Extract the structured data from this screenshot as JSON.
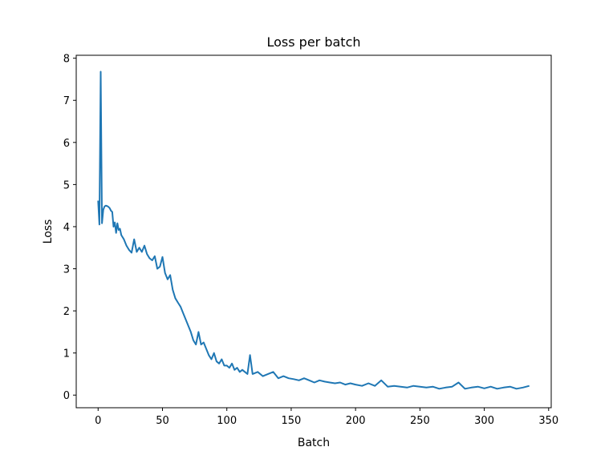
{
  "chart_data": {
    "type": "line",
    "title": "Loss per batch",
    "xlabel": "Batch",
    "ylabel": "Loss",
    "xlim": [
      -17,
      352
    ],
    "ylim": [
      -0.3,
      8.07
    ],
    "xticks": [
      0,
      50,
      100,
      150,
      200,
      250,
      300,
      350
    ],
    "yticks": [
      0,
      1,
      2,
      3,
      4,
      5,
      6,
      7,
      8
    ],
    "grid": false,
    "legend": null,
    "line_color": "#1f77b4",
    "series": [
      {
        "name": "loss",
        "x": [
          0,
          1,
          2,
          3,
          4,
          5,
          6,
          7,
          8,
          9,
          10,
          11,
          12,
          13,
          14,
          15,
          16,
          17,
          18,
          19,
          20,
          22,
          24,
          26,
          28,
          30,
          32,
          34,
          36,
          38,
          40,
          42,
          44,
          46,
          48,
          50,
          52,
          54,
          56,
          58,
          60,
          62,
          64,
          66,
          68,
          70,
          72,
          74,
          76,
          78,
          80,
          82,
          84,
          86,
          88,
          90,
          92,
          94,
          96,
          98,
          100,
          102,
          104,
          106,
          108,
          110,
          112,
          114,
          116,
          118,
          120,
          124,
          128,
          132,
          136,
          140,
          144,
          148,
          152,
          156,
          160,
          164,
          168,
          172,
          176,
          180,
          184,
          188,
          192,
          196,
          200,
          205,
          210,
          215,
          220,
          225,
          230,
          235,
          240,
          245,
          250,
          255,
          260,
          265,
          270,
          275,
          280,
          285,
          290,
          295,
          300,
          305,
          310,
          315,
          320,
          325,
          330,
          335
        ],
        "values": [
          4.62,
          4.05,
          7.68,
          4.08,
          4.4,
          4.48,
          4.5,
          4.49,
          4.47,
          4.44,
          4.38,
          4.35,
          4.0,
          4.1,
          3.85,
          4.08,
          3.92,
          3.95,
          3.8,
          3.75,
          3.7,
          3.55,
          3.45,
          3.38,
          3.7,
          3.4,
          3.5,
          3.4,
          3.55,
          3.35,
          3.25,
          3.2,
          3.3,
          3.0,
          3.05,
          3.28,
          2.9,
          2.75,
          2.85,
          2.5,
          2.3,
          2.2,
          2.1,
          1.95,
          1.8,
          1.65,
          1.5,
          1.3,
          1.2,
          1.5,
          1.2,
          1.25,
          1.1,
          0.95,
          0.85,
          1.0,
          0.8,
          0.75,
          0.85,
          0.7,
          0.7,
          0.65,
          0.75,
          0.6,
          0.65,
          0.55,
          0.6,
          0.55,
          0.5,
          0.95,
          0.5,
          0.55,
          0.45,
          0.5,
          0.55,
          0.4,
          0.45,
          0.4,
          0.38,
          0.35,
          0.4,
          0.35,
          0.3,
          0.35,
          0.32,
          0.3,
          0.28,
          0.3,
          0.25,
          0.28,
          0.25,
          0.22,
          0.28,
          0.22,
          0.35,
          0.2,
          0.22,
          0.2,
          0.18,
          0.22,
          0.2,
          0.18,
          0.2,
          0.15,
          0.18,
          0.2,
          0.3,
          0.15,
          0.18,
          0.2,
          0.16,
          0.2,
          0.15,
          0.18,
          0.2,
          0.15,
          0.18,
          0.22
        ]
      }
    ]
  }
}
